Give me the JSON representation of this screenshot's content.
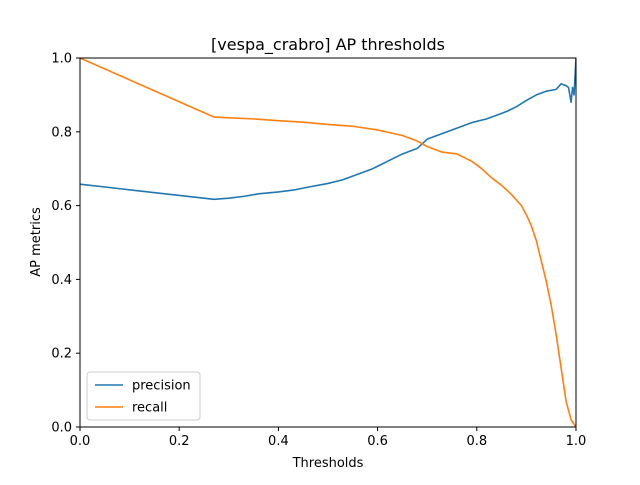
{
  "chart_data": {
    "type": "line",
    "title": "[vespa_crabro] AP thresholds",
    "xlabel": "Thresholds",
    "ylabel": "AP metrics",
    "xlim": [
      0,
      1
    ],
    "ylim": [
      0,
      1
    ],
    "xticks": [
      "0.0",
      "0.2",
      "0.4",
      "0.6",
      "0.8",
      "1.0"
    ],
    "yticks": [
      "0.0",
      "0.2",
      "0.4",
      "0.6",
      "0.8",
      "1.0"
    ],
    "grid": false,
    "legend_position": "lower-left",
    "series": [
      {
        "name": "precision",
        "color": "#1f77b4",
        "x": [
          0.0,
          0.27,
          0.3,
          0.33,
          0.36,
          0.4,
          0.43,
          0.46,
          0.5,
          0.53,
          0.56,
          0.59,
          0.62,
          0.65,
          0.68,
          0.7,
          0.73,
          0.76,
          0.79,
          0.82,
          0.84,
          0.86,
          0.88,
          0.9,
          0.92,
          0.94,
          0.96,
          0.97,
          0.98,
          0.985,
          0.99,
          0.993,
          0.996,
          0.998,
          1.0
        ],
        "y": [
          0.658,
          0.617,
          0.62,
          0.625,
          0.632,
          0.637,
          0.642,
          0.65,
          0.66,
          0.67,
          0.685,
          0.7,
          0.72,
          0.74,
          0.755,
          0.78,
          0.795,
          0.81,
          0.825,
          0.835,
          0.845,
          0.855,
          0.868,
          0.885,
          0.9,
          0.91,
          0.915,
          0.93,
          0.925,
          0.92,
          0.88,
          0.92,
          0.9,
          0.95,
          1.0
        ]
      },
      {
        "name": "recall",
        "color": "#ff7f0e",
        "x": [
          0.0,
          0.27,
          0.3,
          0.35,
          0.4,
          0.45,
          0.5,
          0.55,
          0.6,
          0.65,
          0.68,
          0.7,
          0.73,
          0.76,
          0.79,
          0.81,
          0.83,
          0.85,
          0.87,
          0.89,
          0.9,
          0.91,
          0.92,
          0.93,
          0.94,
          0.95,
          0.96,
          0.97,
          0.98,
          0.99,
          1.0
        ],
        "y": [
          1.0,
          0.84,
          0.838,
          0.835,
          0.83,
          0.826,
          0.82,
          0.815,
          0.805,
          0.79,
          0.775,
          0.76,
          0.745,
          0.74,
          0.72,
          0.7,
          0.675,
          0.655,
          0.63,
          0.6,
          0.575,
          0.545,
          0.505,
          0.45,
          0.395,
          0.33,
          0.25,
          0.16,
          0.07,
          0.02,
          0.0
        ]
      }
    ]
  }
}
